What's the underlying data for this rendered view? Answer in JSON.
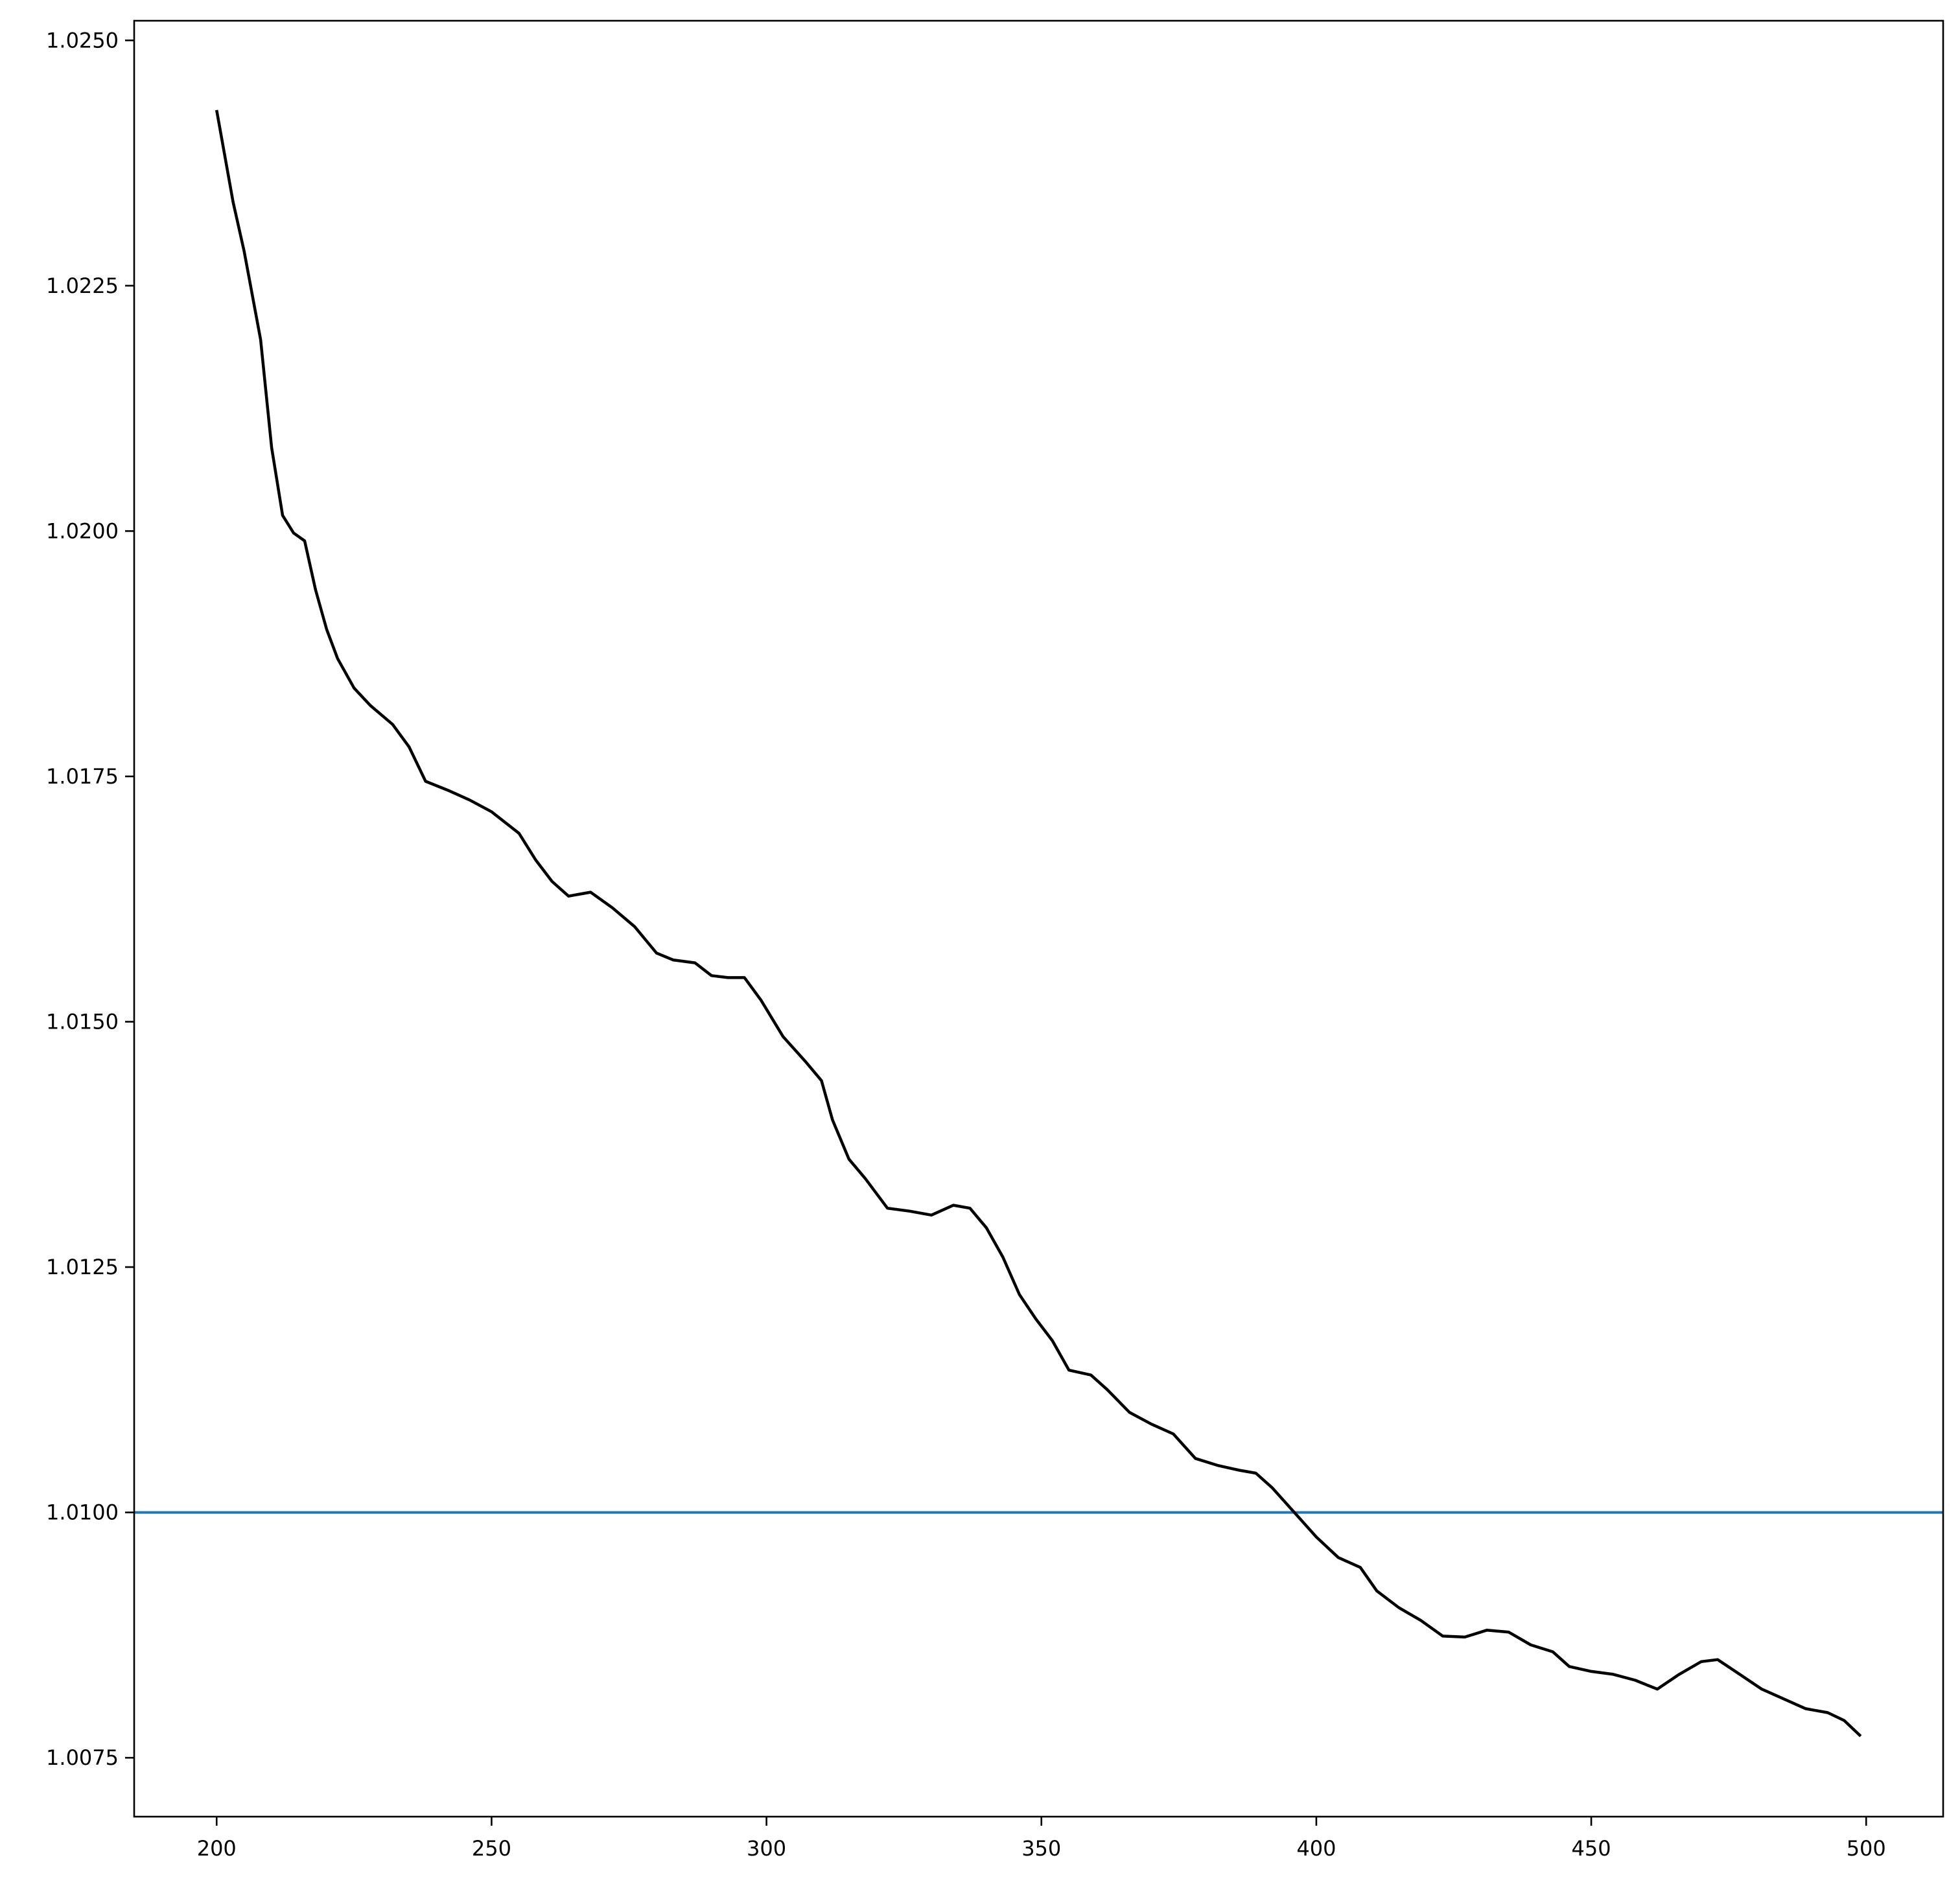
{
  "chart_data": {
    "type": "line",
    "title": "",
    "xlabel": "",
    "ylabel": "",
    "xlim": [
      185,
      514
    ],
    "ylim": [
      1.0069,
      1.0252
    ],
    "grid": false,
    "x_ticks": [
      200,
      250,
      300,
      350,
      400,
      450,
      500
    ],
    "x_tick_labels": [
      "200",
      "250",
      "300",
      "350",
      "400",
      "450",
      "500"
    ],
    "y_ticks": [
      1.0075,
      1.01,
      1.0125,
      1.015,
      1.0175,
      1.02,
      1.0225,
      1.025
    ],
    "y_tick_labels": [
      "1.0075",
      "1.0100",
      "1.0125",
      "1.0150",
      "1.0175",
      "1.0200",
      "1.0225",
      "1.0250"
    ],
    "series": [
      {
        "color": "#000000",
        "points": [
          [
            200,
            1.02429
          ],
          [
            203,
            1.02335
          ],
          [
            205,
            1.02285
          ],
          [
            208,
            1.02195
          ],
          [
            210,
            1.02085
          ],
          [
            212,
            1.02016
          ],
          [
            214,
            1.01998
          ],
          [
            216,
            1.0199
          ],
          [
            218,
            1.0194
          ],
          [
            220,
            1.019
          ],
          [
            222,
            1.0187
          ],
          [
            225,
            1.0184
          ],
          [
            228,
            1.01822
          ],
          [
            232,
            1.01803
          ],
          [
            235,
            1.0178
          ],
          [
            238,
            1.01745
          ],
          [
            242,
            1.01736
          ],
          [
            246,
            1.01726
          ],
          [
            250,
            1.01714
          ],
          [
            255,
            1.01692
          ],
          [
            258,
            1.01665
          ],
          [
            261,
            1.01643
          ],
          [
            264,
            1.01628
          ],
          [
            268,
            1.01632
          ],
          [
            272,
            1.01616
          ],
          [
            276,
            1.01597
          ],
          [
            280,
            1.0157
          ],
          [
            283,
            1.01563
          ],
          [
            287,
            1.0156
          ],
          [
            290,
            1.01547
          ],
          [
            293,
            1.01545
          ],
          [
            296,
            1.01545
          ],
          [
            299,
            1.01522
          ],
          [
            303,
            1.01485
          ],
          [
            307,
            1.0146
          ],
          [
            310,
            1.0144
          ],
          [
            312,
            1.014
          ],
          [
            315,
            1.0136
          ],
          [
            318,
            1.0134
          ],
          [
            322,
            1.0131
          ],
          [
            326,
            1.01307
          ],
          [
            330,
            1.01303
          ],
          [
            334,
            1.01313
          ],
          [
            337,
            1.0131
          ],
          [
            340,
            1.0129
          ],
          [
            343,
            1.0126
          ],
          [
            346,
            1.01222
          ],
          [
            349,
            1.01197
          ],
          [
            352,
            1.01175
          ],
          [
            355,
            1.01145
          ],
          [
            359,
            1.0114
          ],
          [
            362,
            1.01125
          ],
          [
            366,
            1.01102
          ],
          [
            370,
            1.0109
          ],
          [
            374,
            1.0108
          ],
          [
            378,
            1.01055
          ],
          [
            382,
            1.01048
          ],
          [
            386,
            1.01043
          ],
          [
            389,
            1.0104
          ],
          [
            392,
            1.01025
          ],
          [
            396,
            1.01
          ],
          [
            400,
            1.00975
          ],
          [
            404,
            1.00954
          ],
          [
            408,
            1.00944
          ],
          [
            411,
            1.0092
          ],
          [
            415,
            1.00903
          ],
          [
            419,
            1.0089
          ],
          [
            423,
            1.00874
          ],
          [
            427,
            1.00873
          ],
          [
            431,
            1.0088
          ],
          [
            435,
            1.00878
          ],
          [
            439,
            1.00865
          ],
          [
            443,
            1.00858
          ],
          [
            446,
            1.00843
          ],
          [
            450,
            1.00838
          ],
          [
            454,
            1.00835
          ],
          [
            458,
            1.00829
          ],
          [
            462,
            1.0082
          ],
          [
            466,
            1.00835
          ],
          [
            470,
            1.00848
          ],
          [
            473,
            1.0085
          ],
          [
            477,
            1.00835
          ],
          [
            481,
            1.0082
          ],
          [
            485,
            1.0081
          ],
          [
            489,
            1.008
          ],
          [
            493,
            1.00796
          ],
          [
            496,
            1.00788
          ],
          [
            499,
            1.00772
          ]
        ]
      }
    ],
    "reference_lines": [
      {
        "orientation": "horizontal",
        "y": 1.01,
        "color": "#1f77b4"
      }
    ]
  }
}
